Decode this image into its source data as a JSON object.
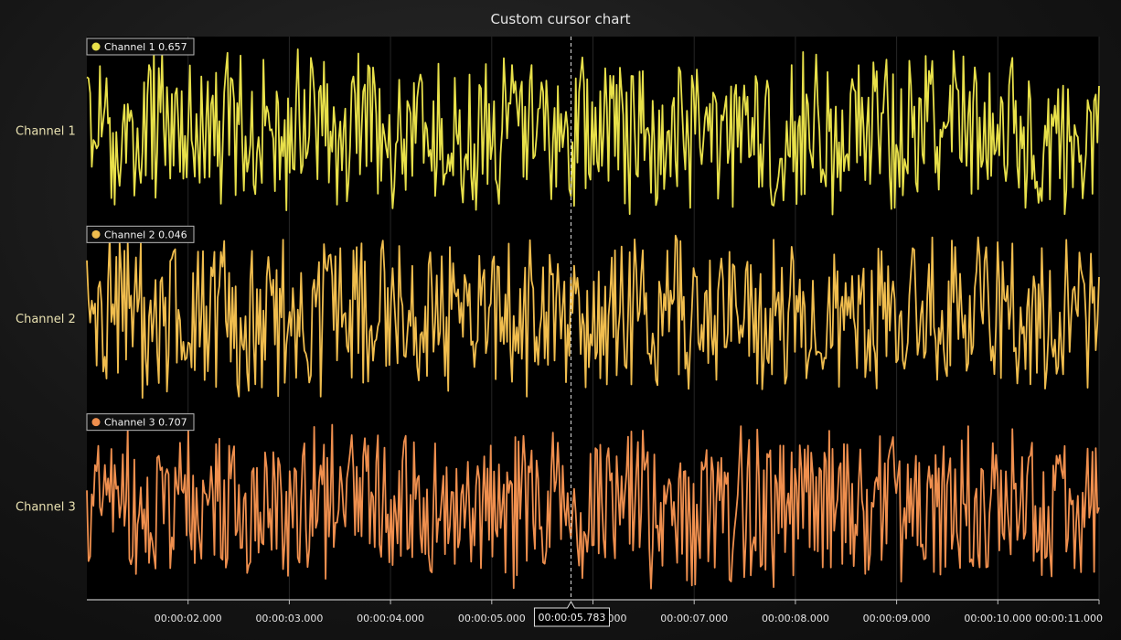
{
  "chart_data": {
    "type": "line",
    "title": "Custom cursor chart",
    "xlabel": "",
    "ylabel": "",
    "x_ticks": [
      "00:00:02.000",
      "00:00:03.000",
      "00:00:04.000",
      "00:00:05.000",
      "00:00:06.000",
      "00:00:07.000",
      "00:00:08.000",
      "00:00:09.000",
      "00:00:10.000",
      "00:00:11.000"
    ],
    "x_range_seconds": [
      1.0,
      11.0
    ],
    "cursor": {
      "x_label": "00:00:05.783",
      "x_value_seconds": 5.783
    },
    "grid": true,
    "series": [
      {
        "name": "Channel 1",
        "color": "#e8e04a",
        "cursor_value": "0.657",
        "y_range": [
          0,
          1
        ]
      },
      {
        "name": "Channel 2",
        "color": "#f0bd4e",
        "cursor_value": "0.046",
        "y_range": [
          0,
          1
        ]
      },
      {
        "name": "Channel 3",
        "color": "#ef8f4e",
        "cursor_value": "0.707",
        "y_range": [
          0,
          1
        ]
      }
    ]
  }
}
